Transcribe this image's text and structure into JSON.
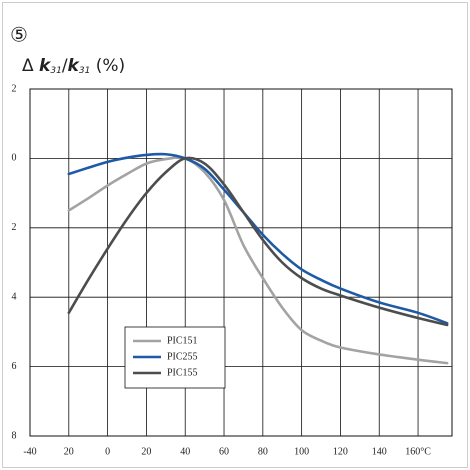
{
  "chart_data": {
    "type": "line",
    "annotation": "⑤",
    "ylabel_parts": [
      "Δ ",
      "k",
      "31",
      "/",
      "k",
      "31",
      " (%)"
    ],
    "x": [
      -20,
      -10,
      0,
      10,
      20,
      30,
      40,
      50,
      60,
      70,
      80,
      90,
      100,
      110,
      120,
      140,
      160,
      175
    ],
    "series": [
      {
        "name": "PIC151",
        "color": "#a3a3a3",
        "values": [
          -1.5,
          -1.15,
          -0.78,
          -0.45,
          -0.15,
          -0.02,
          0,
          -0.4,
          -1.2,
          -2.5,
          -3.45,
          -4.3,
          -4.95,
          -5.25,
          -5.45,
          -5.65,
          -5.8,
          -5.9
        ]
      },
      {
        "name": "PIC255",
        "color": "#1f5aa6",
        "values": [
          -0.45,
          -0.27,
          -0.1,
          0.02,
          0.1,
          0.12,
          0,
          -0.3,
          -0.9,
          -1.55,
          -2.2,
          -2.75,
          -3.2,
          -3.5,
          -3.75,
          -4.15,
          -4.45,
          -4.75
        ]
      },
      {
        "name": "PIC155",
        "color": "#4d4d4d",
        "values": [
          -4.45,
          -3.5,
          -2.6,
          -1.75,
          -1.0,
          -0.4,
          0,
          -0.15,
          -0.75,
          -1.55,
          -2.35,
          -3.0,
          -3.45,
          -3.75,
          -3.95,
          -4.3,
          -4.6,
          -4.8
        ]
      }
    ],
    "xlim": [
      -40,
      177.5
    ],
    "xticks": [
      -40,
      {
        "value": -20,
        "label": "20"
      },
      0,
      20,
      40,
      60,
      80,
      100,
      120,
      140,
      {
        "value": 160,
        "label": "160°C"
      }
    ],
    "ylim": [
      -8,
      2
    ],
    "yticks": [
      2,
      0,
      {
        "value": -2,
        "label": "2"
      },
      {
        "value": -4,
        "label": "4"
      },
      {
        "value": -6,
        "label": "6"
      },
      {
        "value": -8,
        "label": "8"
      }
    ],
    "grid": true,
    "legend": "lower-left"
  }
}
